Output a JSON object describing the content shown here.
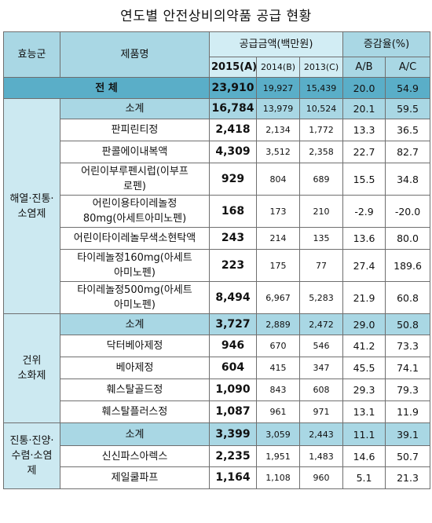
{
  "title": "연도별 안전상비의약품 공급 현황",
  "header": {
    "efficacy": "효능군",
    "product": "제품명",
    "supply": "공급금액(백만원)",
    "change": "증감율(%)",
    "y2015": "2015(A)",
    "y2014": "2014(B)",
    "y2013": "2013(C)",
    "ab": "A/B",
    "ac": "A/C"
  },
  "total": {
    "label": "전    체",
    "a": "23,910",
    "b": "19,927",
    "c": "15,439",
    "ab": "20.0",
    "ac": "54.9"
  },
  "groups": [
    {
      "category": "해열·진통·\n소염제",
      "subtotal": {
        "label": "소계",
        "a": "16,784",
        "b": "13,979",
        "c": "10,524",
        "ab": "20.1",
        "ac": "59.5"
      },
      "rows": [
        {
          "name": "판피린티정",
          "a": "2,418",
          "b": "2,134",
          "c": "1,772",
          "ab": "13.3",
          "ac": "36.5"
        },
        {
          "name": "판콜에이내복액",
          "a": "4,309",
          "b": "3,512",
          "c": "2,358",
          "ab": "22.7",
          "ac": "82.7"
        },
        {
          "name": "어린이부루펜시럽(이부프\n로펜)",
          "a": "929",
          "b": "804",
          "c": "689",
          "ab": "15.5",
          "ac": "34.8"
        },
        {
          "name": "어린이용타이레놀정\n80mg(아세트아미노펜)",
          "a": "168",
          "b": "173",
          "c": "210",
          "ab": "-2.9",
          "ac": "-20.0"
        },
        {
          "name": "어린이타이레놀무색소현탁액",
          "a": "243",
          "b": "214",
          "c": "135",
          "ab": "13.6",
          "ac": "80.0"
        },
        {
          "name": "타이레놀정160mg(아세트\n아미노펜)",
          "a": "223",
          "b": "175",
          "c": "77",
          "ab": "27.4",
          "ac": "189.6"
        },
        {
          "name": "타이레놀정500mg(아세트\n아미노펜)",
          "a": "8,494",
          "b": "6,967",
          "c": "5,283",
          "ab": "21.9",
          "ac": "60.8"
        }
      ]
    },
    {
      "category": "건위\n소화제",
      "subtotal": {
        "label": "소계",
        "a": "3,727",
        "b": "2,889",
        "c": "2,472",
        "ab": "29.0",
        "ac": "50.8"
      },
      "rows": [
        {
          "name": "닥터베아제정",
          "a": "946",
          "b": "670",
          "c": "546",
          "ab": "41.2",
          "ac": "73.3"
        },
        {
          "name": "베아제정",
          "a": "604",
          "b": "415",
          "c": "347",
          "ab": "45.5",
          "ac": "74.1"
        },
        {
          "name": "훼스탈골드정",
          "a": "1,090",
          "b": "843",
          "c": "608",
          "ab": "29.3",
          "ac": "79.3"
        },
        {
          "name": "훼스탈플러스정",
          "a": "1,087",
          "b": "961",
          "c": "971",
          "ab": "13.1",
          "ac": "11.9"
        }
      ]
    },
    {
      "category": "진통·진양·\n수렴·소염\n제",
      "subtotal": {
        "label": "소계",
        "a": "3,399",
        "b": "3,059",
        "c": "2,443",
        "ab": "11.1",
        "ac": "39.1"
      },
      "rows": [
        {
          "name": "신신파스아렉스",
          "a": "2,235",
          "b": "1,951",
          "c": "1,483",
          "ab": "14.6",
          "ac": "50.7"
        },
        {
          "name": "제일쿨파프",
          "a": "1,164",
          "b": "1,108",
          "c": "960",
          "ab": "5.1",
          "ac": "21.3"
        }
      ]
    }
  ]
}
